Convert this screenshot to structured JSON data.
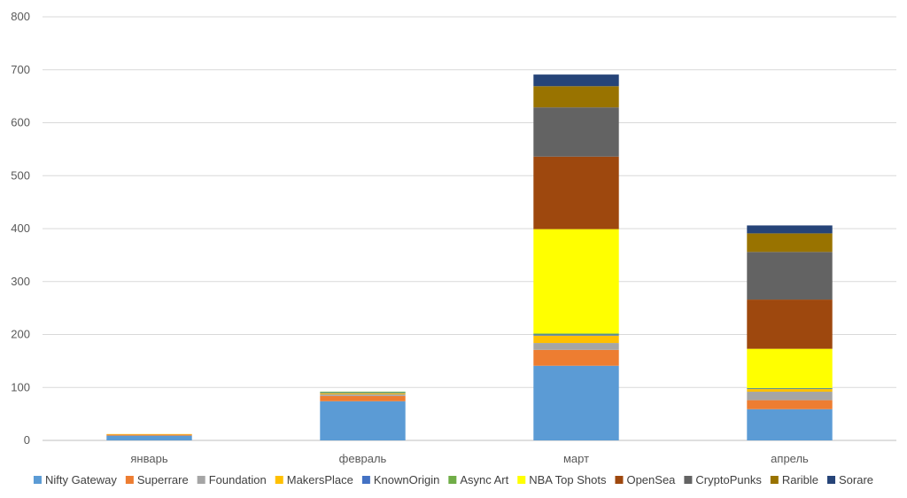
{
  "chart_data": {
    "type": "bar",
    "stacked": true,
    "categories": [
      "январь",
      "февраль",
      "март",
      "апрель"
    ],
    "ylim": [
      0,
      800
    ],
    "yticks": [
      0,
      100,
      200,
      300,
      400,
      500,
      600,
      700,
      800
    ],
    "grid": true,
    "legend_position": "bottom",
    "series": [
      {
        "name": "Nifty Gateway",
        "color": "#5B9BD5",
        "values": [
          9,
          74,
          141,
          59
        ]
      },
      {
        "name": "Superrare",
        "color": "#ED7D31",
        "values": [
          2,
          10,
          30,
          17
        ]
      },
      {
        "name": "Foundation",
        "color": "#A5A5A5",
        "values": [
          0,
          3,
          13,
          16
        ]
      },
      {
        "name": "MakersPlace",
        "color": "#FFC000",
        "values": [
          1,
          2,
          14,
          5
        ]
      },
      {
        "name": "KnownOrigin",
        "color": "#4472C4",
        "values": [
          0,
          1,
          2,
          1
        ]
      },
      {
        "name": "Async Art",
        "color": "#70AD47",
        "values": [
          0,
          2,
          2,
          1
        ]
      },
      {
        "name": "NBA Top Shots",
        "color": "#FFFF00",
        "values": [
          0,
          0,
          197,
          74
        ]
      },
      {
        "name": "OpenSea",
        "color": "#9E480E",
        "values": [
          0,
          0,
          137,
          93
        ]
      },
      {
        "name": "CryptoPunks",
        "color": "#636363",
        "values": [
          0,
          0,
          93,
          90
        ]
      },
      {
        "name": "Rarible",
        "color": "#997300",
        "values": [
          0,
          0,
          40,
          35
        ]
      },
      {
        "name": "Sorare",
        "color": "#264478",
        "values": [
          0,
          0,
          22,
          15
        ]
      }
    ]
  }
}
